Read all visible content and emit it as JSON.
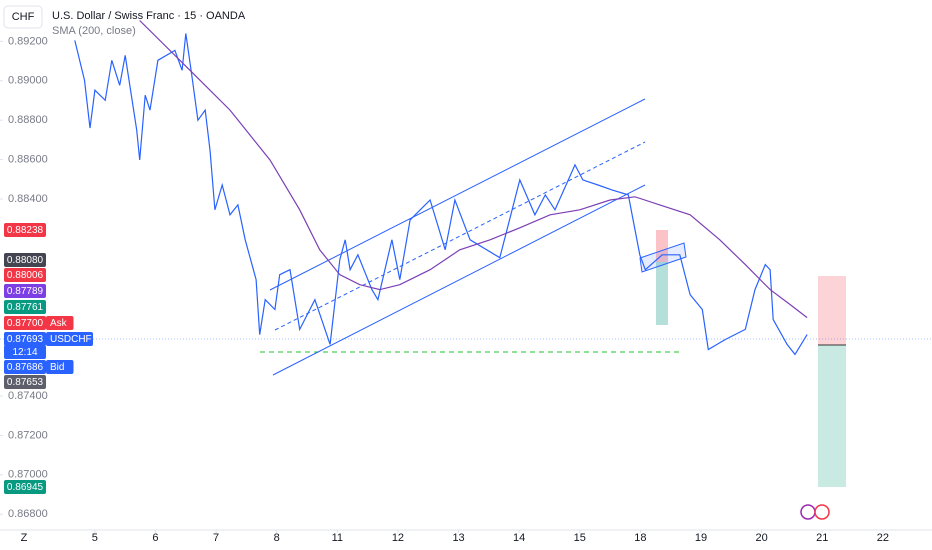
{
  "header": {
    "symbol": "CHF",
    "title": "U.S. Dollar / Swiss Franc · 15 · OANDA",
    "indicator": "SMA (200, close)",
    "corner": "Z"
  },
  "chart_data": {
    "type": "line",
    "xlim": [
      -0.41,
      13.81
    ],
    "xticks": [
      {
        "value": 0,
        "label": "5"
      },
      {
        "value": 1,
        "label": "6"
      },
      {
        "value": 2,
        "label": "7"
      },
      {
        "value": 3,
        "label": "8"
      },
      {
        "value": 4,
        "label": "11"
      },
      {
        "value": 5,
        "label": "12"
      },
      {
        "value": 6,
        "label": "13"
      },
      {
        "value": 7,
        "label": "14"
      },
      {
        "value": 8,
        "label": "15"
      },
      {
        "value": 9,
        "label": "18"
      },
      {
        "value": 10,
        "label": "19"
      },
      {
        "value": 11,
        "label": "20"
      },
      {
        "value": 12,
        "label": "21"
      },
      {
        "value": 13,
        "label": "22"
      }
    ],
    "ylim": [
      0.8672,
      0.8941
    ],
    "yticks": [
      {
        "value": 0.892,
        "label": "0.89200"
      },
      {
        "value": 0.89,
        "label": "0.89000"
      },
      {
        "value": 0.888,
        "label": "0.88800"
      },
      {
        "value": 0.886,
        "label": "0.88600"
      },
      {
        "value": 0.884,
        "label": "0.88400"
      },
      {
        "value": 0.874,
        "label": "0.87400"
      },
      {
        "value": 0.872,
        "label": "0.87200"
      },
      {
        "value": 0.87,
        "label": "0.87000"
      },
      {
        "value": 0.868,
        "label": "0.86800"
      }
    ],
    "series": [
      {
        "name": "USDCHF",
        "color": "#2962ff",
        "x": [
          -0.33,
          -0.17,
          -0.08,
          0,
          0.17,
          0.28,
          0.41,
          0.5,
          0.69,
          0.74,
          0.83,
          0.91,
          1.04,
          1.32,
          1.44,
          1.5,
          1.6,
          1.7,
          1.82,
          1.9,
          1.98,
          2.1,
          2.23,
          2.36,
          2.48,
          2.66,
          2.72,
          2.81,
          2.97,
          3.05,
          3.22,
          3.38,
          3.63,
          3.88,
          4.04,
          4.13,
          4.21,
          4.34,
          4.57,
          4.67,
          4.9,
          5.03,
          5.2,
          5.53,
          5.78,
          5.94,
          6.19,
          6.68,
          7.01,
          7.26,
          7.43,
          7.59,
          7.92,
          8.05,
          8.3,
          8.53,
          8.8,
          8.99,
          9.08,
          9.36,
          9.65,
          9.82,
          10.02,
          10.12,
          10.4,
          10.73,
          10.89,
          11.06,
          11.14,
          11.19,
          11.42,
          11.55,
          11.75
        ],
        "values": [
          0.89205,
          0.89003,
          0.8876,
          0.88952,
          0.88901,
          0.89104,
          0.88977,
          0.89129,
          0.8875,
          0.88598,
          0.88927,
          0.88851,
          0.89104,
          0.89154,
          0.89053,
          0.8924,
          0.89028,
          0.888,
          0.88851,
          0.88648,
          0.88345,
          0.88471,
          0.8832,
          0.8837,
          0.88193,
          0.87991,
          0.87712,
          0.87889,
          0.87839,
          0.88016,
          0.88041,
          0.87738,
          0.87889,
          0.87662,
          0.88092,
          0.88193,
          0.88041,
          0.88117,
          0.8794,
          0.87889,
          0.88193,
          0.87991,
          0.88294,
          0.88395,
          0.88142,
          0.88395,
          0.88193,
          0.88102,
          0.88497,
          0.8832,
          0.88421,
          0.88345,
          0.88573,
          0.88497,
          0.88471,
          0.88446,
          0.88421,
          0.88117,
          0.88041,
          0.88117,
          0.88117,
          0.87915,
          0.87839,
          0.87636,
          0.87687,
          0.87738,
          0.8794,
          0.88067,
          0.88041,
          0.87788,
          0.87662,
          0.87611,
          0.87712
        ]
      },
      {
        "name": "SMA (200, close)",
        "color": "#7b3fb5",
        "x": [
          0.74,
          1.57,
          2.23,
          2.89,
          3.38,
          3.71,
          4.04,
          4.37,
          4.7,
          5.03,
          5.53,
          6.02,
          6.52,
          7.01,
          7.51,
          8,
          8.5,
          8.91,
          9.32,
          9.82,
          10.31,
          10.73,
          11.14,
          11.47,
          11.75
        ],
        "values": [
          0.89306,
          0.89053,
          0.88851,
          0.88598,
          0.88345,
          0.88142,
          0.88016,
          0.87965,
          0.8794,
          0.87965,
          0.88041,
          0.88142,
          0.88193,
          0.88254,
          0.8832,
          0.88345,
          0.88395,
          0.88411,
          0.8837,
          0.8832,
          0.88193,
          0.88067,
          0.8794,
          0.87864,
          0.87798
        ]
      }
    ],
    "price_tags": [
      {
        "label": "0.88238",
        "color": "#f23645"
      },
      {
        "label": "0.88080",
        "color": "#434651"
      },
      {
        "label": "0.88006",
        "color": "#f23645"
      },
      {
        "label": "0.87789",
        "color": "#7b3fe4"
      },
      {
        "label": "0.87761",
        "color": "#089981"
      },
      {
        "label": "0.87700",
        "color": "#f23645",
        "tag": "Ask"
      },
      {
        "label": "0.87693",
        "color": "#2962ff",
        "tag": "USDCHF"
      },
      {
        "label": "12:14",
        "color": "#2962ff"
      },
      {
        "label": "0.87686",
        "color": "#2962ff",
        "tag": "Bid"
      },
      {
        "label": "0.87653",
        "color": "#5d606b"
      },
      {
        "label": "0.86945",
        "color": "#089981"
      }
    ]
  }
}
